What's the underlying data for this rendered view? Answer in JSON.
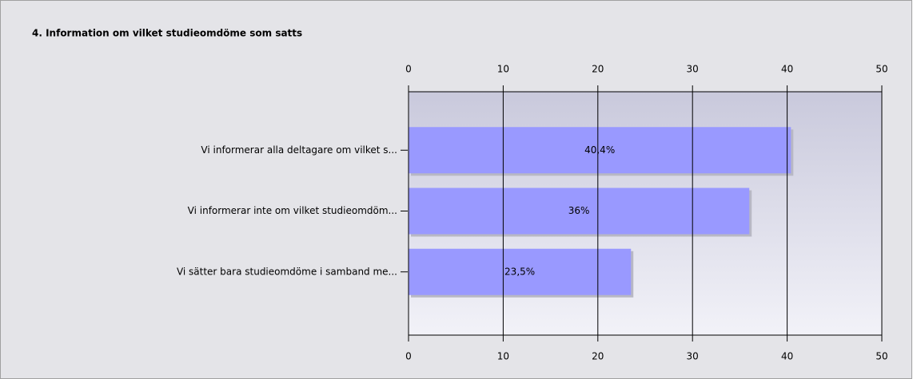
{
  "chart_data": {
    "type": "bar",
    "orientation": "horizontal",
    "title": "4. Information om vilket studieomdöme som satts",
    "categories": [
      "Vi informerar alla deltagare om vilket s...",
      "Vi informerar inte om vilket studieomdöm...",
      "Vi sätter bara studieomdöme i samband me..."
    ],
    "values": [
      40.4,
      36,
      23.5
    ],
    "value_labels": [
      "40,4%",
      "36%",
      "23,5%"
    ],
    "color": "#9999ff",
    "xlim": [
      0,
      50
    ],
    "xticks": [
      0,
      10,
      20,
      30,
      40,
      50
    ],
    "grid": true
  }
}
